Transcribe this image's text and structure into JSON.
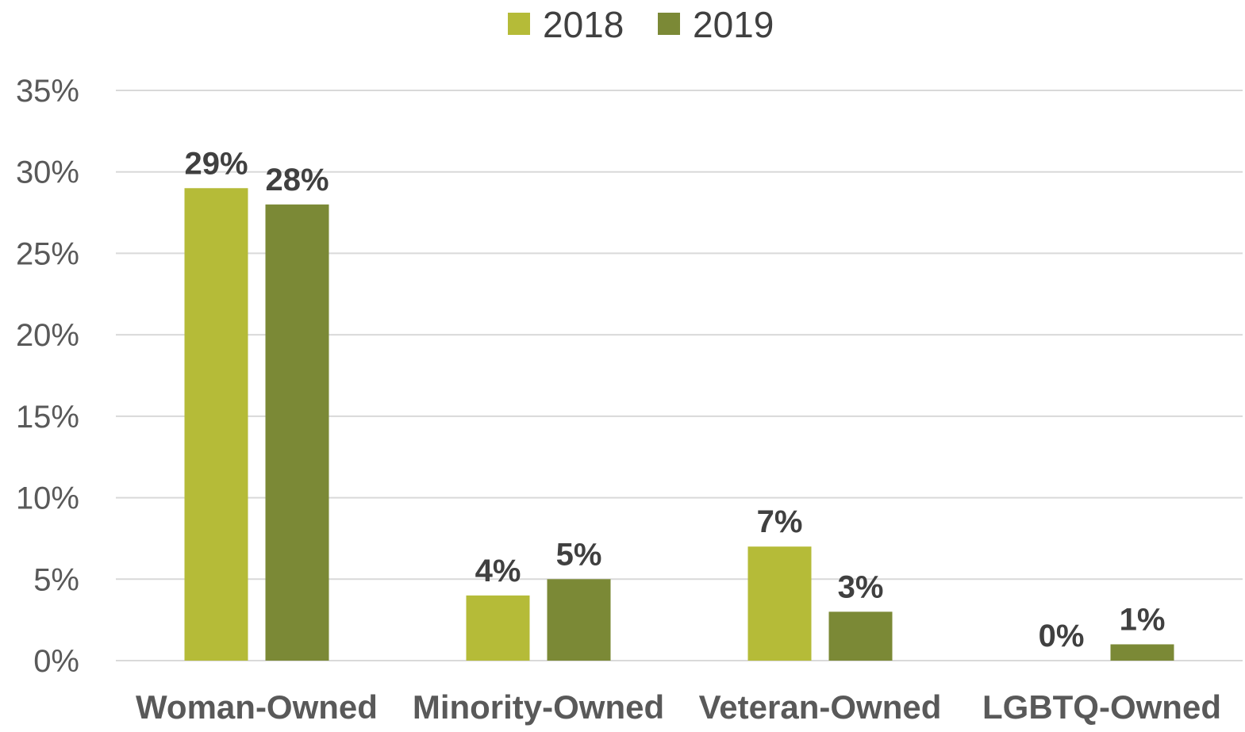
{
  "chart_data": {
    "type": "bar",
    "title": "",
    "xlabel": "",
    "ylabel": "",
    "categories": [
      "Woman-Owned",
      "Minority-Owned",
      "Veteran-Owned",
      "LGBTQ-Owned"
    ],
    "series": [
      {
        "name": "2018",
        "color": "#b5bb38",
        "values": [
          29,
          4,
          7,
          0
        ],
        "labels": [
          "29%",
          "4%",
          "7%",
          "0%"
        ]
      },
      {
        "name": "2019",
        "color": "#7b8936",
        "values": [
          28,
          5,
          3,
          1
        ],
        "labels": [
          "28%",
          "5%",
          "3%",
          "1%"
        ]
      }
    ],
    "ylim": [
      0,
      35
    ],
    "yticks": [
      0,
      5,
      10,
      15,
      20,
      25,
      30,
      35
    ],
    "ytick_labels": [
      "0%",
      "5%",
      "10%",
      "15%",
      "20%",
      "25%",
      "30%",
      "35%"
    ],
    "grid": true,
    "legend_position": "top-center"
  }
}
